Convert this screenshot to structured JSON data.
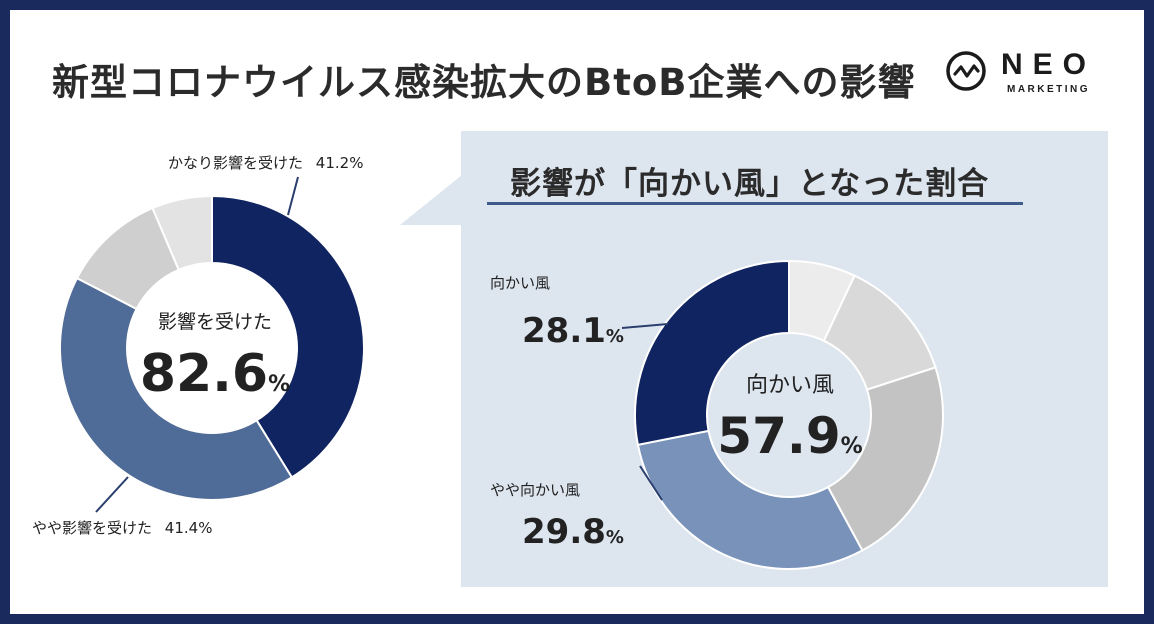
{
  "title": "新型コロナウイルス感染拡大のBtoB企業への影響",
  "logo": {
    "name": "NEO",
    "sub": "MARKETING"
  },
  "panel_title": "影響が「向かい風」となった割合",
  "chart_data": [
    {
      "type": "pie",
      "variant": "donut",
      "center_label": "影響を受けた",
      "center_value": "82.6",
      "center_unit": "%",
      "slices": [
        {
          "label": "かなり影響を受けた",
          "value": 41.2,
          "value_text": "41.2%",
          "color": "#0f2460"
        },
        {
          "label": "やや影響を受けた",
          "value": 41.4,
          "value_text": "41.4%",
          "color": "#4f6b97"
        },
        {
          "label": "",
          "value": 11.0,
          "color": "#cfcfcf"
        },
        {
          "label": "",
          "value": 6.4,
          "color": "#e3e3e3"
        }
      ]
    },
    {
      "type": "pie",
      "variant": "donut",
      "center_label": "向かい風",
      "center_value": "57.9",
      "center_unit": "%",
      "slices": [
        {
          "label": "",
          "value": 7.0,
          "color": "#ececec"
        },
        {
          "label": "",
          "value": 13.0,
          "color": "#d9d9d9"
        },
        {
          "label": "",
          "value": 22.1,
          "color": "#c3c3c3"
        },
        {
          "label": "やや向かい風",
          "value": 29.8,
          "value_text": "29.8",
          "unit": "%",
          "color": "#7892ba"
        },
        {
          "label": "向かい風",
          "value": 28.1,
          "value_text": "28.1",
          "unit": "%",
          "color": "#0f2460"
        }
      ]
    }
  ]
}
